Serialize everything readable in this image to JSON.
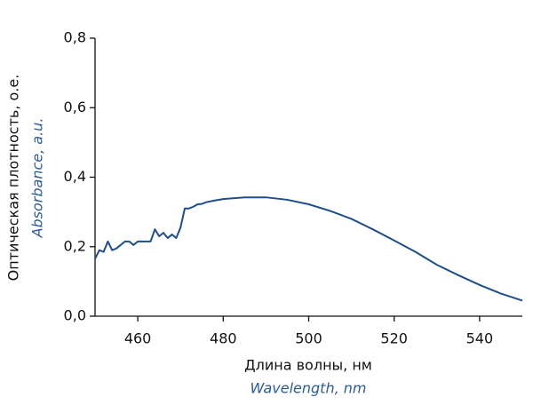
{
  "chart_data": {
    "type": "line",
    "x_label": "Длина волны, нм",
    "x_label_en": "Wavelength, nm",
    "y_label": "Оптическая плотность, о.е.",
    "y_label_en": "Absorbance, a.u.",
    "x": [
      450,
      451,
      452,
      453,
      454,
      455,
      456,
      457,
      458,
      459,
      460,
      461,
      462,
      463,
      464,
      465,
      466,
      467,
      468,
      469,
      470,
      471,
      472,
      473,
      474,
      475,
      476,
      478,
      480,
      485,
      490,
      495,
      500,
      505,
      510,
      515,
      520,
      525,
      530,
      535,
      540,
      545,
      550
    ],
    "series": [
      {
        "color": "#1f4e8c",
        "values": [
          0.165,
          0.19,
          0.185,
          0.215,
          0.19,
          0.195,
          0.205,
          0.215,
          0.215,
          0.205,
          0.215,
          0.215,
          0.215,
          0.215,
          0.25,
          0.23,
          0.24,
          0.225,
          0.235,
          0.225,
          0.255,
          0.31,
          0.31,
          0.315,
          0.322,
          0.323,
          0.328,
          0.333,
          0.337,
          0.342,
          0.342,
          0.335,
          0.322,
          0.303,
          0.28,
          0.25,
          0.218,
          0.185,
          0.148,
          0.118,
          0.09,
          0.065,
          0.045
        ]
      }
    ],
    "xlim": [
      450,
      550
    ],
    "xticks": [
      460,
      480,
      500,
      520,
      540
    ],
    "ylim": [
      0,
      0.8
    ],
    "yticks": [
      {
        "value": 0,
        "label": "0,0"
      },
      {
        "value": 0.2,
        "label": "0,2"
      },
      {
        "value": 0.4,
        "label": "0,4"
      },
      {
        "value": 0.6,
        "label": "0,6"
      },
      {
        "value": 0.8,
        "label": "0,8"
      }
    ]
  }
}
